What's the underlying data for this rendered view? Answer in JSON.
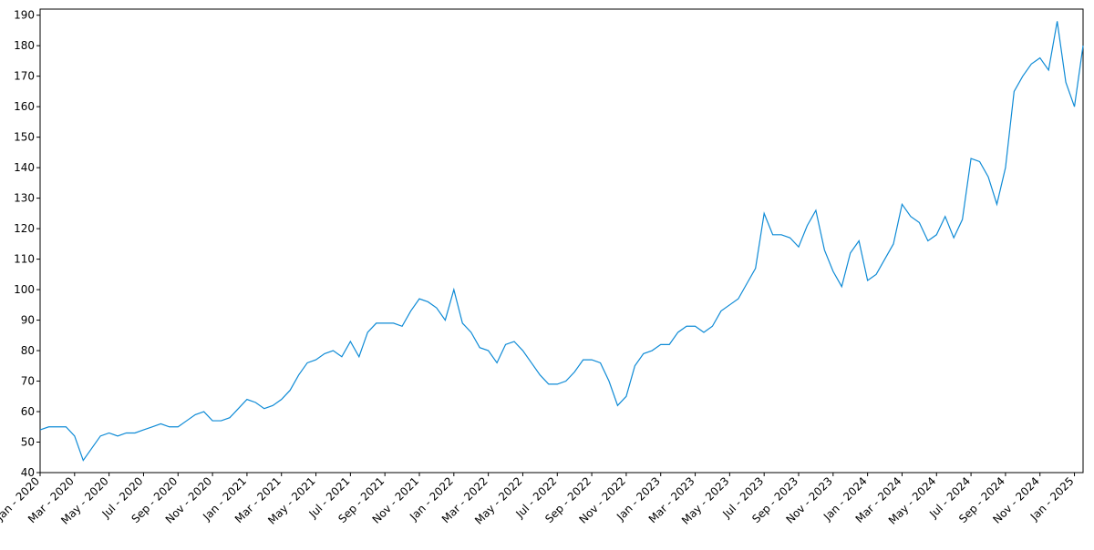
{
  "chart_data": {
    "type": "line",
    "color": "#0f8bd6",
    "x": [
      "Jan - 2020",
      null,
      null,
      null,
      "Mar - 2020",
      null,
      null,
      null,
      "May - 2020",
      null,
      null,
      null,
      "Jul - 2020",
      null,
      null,
      null,
      "Sep - 2020",
      null,
      null,
      null,
      "Nov - 2020",
      null,
      null,
      null,
      "Jan - 2021",
      null,
      null,
      null,
      "Mar - 2021",
      null,
      null,
      null,
      "May - 2021",
      null,
      null,
      null,
      "Jul - 2021",
      null,
      null,
      null,
      "Sep - 2021",
      null,
      null,
      null,
      "Nov - 2021",
      null,
      null,
      null,
      "Jan - 2022",
      null,
      null,
      null,
      "Mar - 2022",
      null,
      null,
      null,
      "May - 2022",
      null,
      null,
      null,
      "Jul - 2022",
      null,
      null,
      null,
      "Sep - 2022",
      null,
      null,
      null,
      "Nov - 2022",
      null,
      null,
      null,
      "Jan - 2023",
      null,
      null,
      null,
      "Mar - 2023",
      null,
      null,
      null,
      "May - 2023",
      null,
      null,
      null,
      "Jul - 2023",
      null,
      null,
      null,
      "Sep - 2023",
      null,
      null,
      null,
      "Nov - 2023",
      null,
      null,
      null,
      "Jan - 2024",
      null,
      null,
      null,
      "Mar - 2024",
      null,
      null,
      null,
      "May - 2024",
      null,
      null,
      null,
      "Jul - 2024",
      null,
      null,
      null,
      "Sep - 2024",
      null,
      null,
      null,
      "Nov - 2024",
      null,
      null,
      null,
      "Jan - 2025",
      null
    ],
    "values": [
      54,
      55,
      55,
      55,
      52,
      44,
      48,
      52,
      53,
      52,
      53,
      53,
      54,
      55,
      56,
      55,
      55,
      57,
      59,
      60,
      57,
      57,
      58,
      61,
      64,
      63,
      61,
      62,
      64,
      67,
      72,
      76,
      77,
      79,
      80,
      78,
      83,
      78,
      86,
      89,
      89,
      89,
      88,
      93,
      97,
      96,
      94,
      90,
      100,
      89,
      86,
      81,
      80,
      76,
      82,
      83,
      80,
      76,
      72,
      69,
      69,
      70,
      73,
      77,
      77,
      76,
      70,
      62,
      65,
      75,
      79,
      80,
      82,
      82,
      86,
      88,
      88,
      86,
      88,
      93,
      95,
      97,
      102,
      107,
      125,
      118,
      118,
      117,
      114,
      121,
      126,
      113,
      106,
      101,
      112,
      116,
      103,
      105,
      110,
      115,
      128,
      124,
      122,
      116,
      118,
      124,
      117,
      123,
      143,
      142,
      137,
      128,
      140,
      165,
      170,
      174,
      176,
      172,
      188,
      168,
      160,
      180
    ],
    "ylim": [
      40,
      192
    ],
    "yticks": [
      40,
      50,
      60,
      70,
      80,
      90,
      100,
      110,
      120,
      130,
      140,
      150,
      160,
      170,
      180,
      190
    ]
  }
}
